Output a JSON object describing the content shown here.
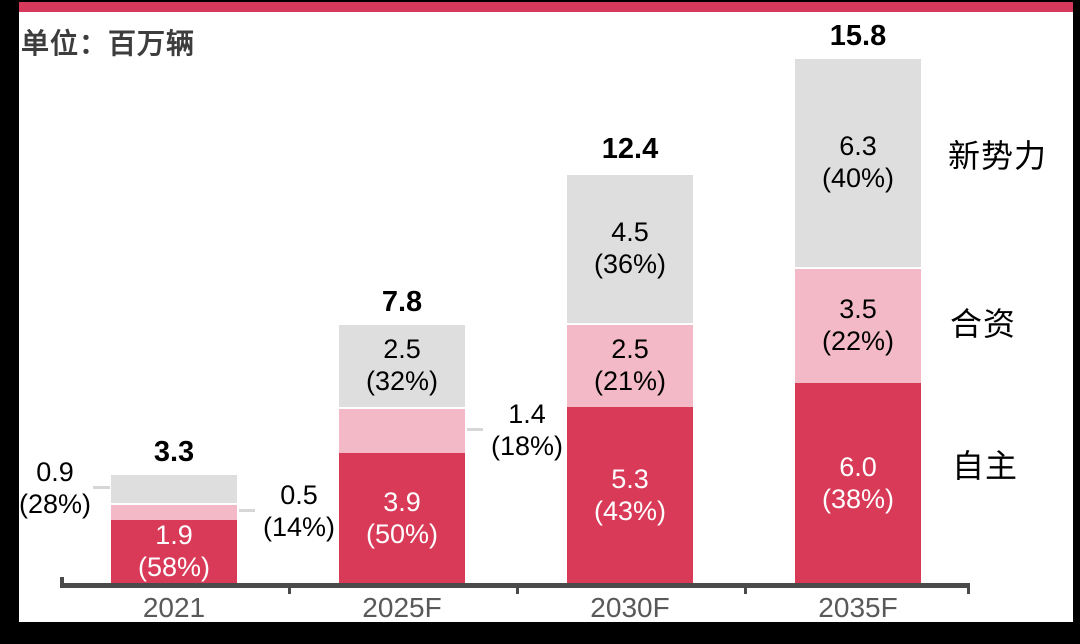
{
  "title": "单位：百万辆",
  "legend": {
    "new_forces": "新势力",
    "joint_venture": "合资",
    "domestic": "自主"
  },
  "colors": {
    "accent_line": "#d6395c",
    "domestic": "#d83a58",
    "joint_venture": "#f3b9c6",
    "new_forces": "#dedede",
    "axis_line": "#4a4a4a",
    "axis_label": "#595959",
    "leader_line": "#d6d6d6",
    "frame": "#000000",
    "background": "#ffffff",
    "inside_label_on_dark": "#ffffff",
    "inside_label_on_light": "#000000"
  },
  "chart_data": {
    "type": "bar",
    "stacked": true,
    "title": "单位：百万辆",
    "unit": "百万辆",
    "categories": [
      "2021",
      "2025F",
      "2030F",
      "2035F"
    ],
    "totals": [
      3.3,
      7.8,
      12.4,
      15.8
    ],
    "series": [
      {
        "name": "自主",
        "key": "domestic",
        "values": [
          1.9,
          3.9,
          5.3,
          6.0
        ],
        "pct": [
          "58%",
          "50%",
          "43%",
          "38%"
        ],
        "label_placement": [
          "inside",
          "inside",
          "inside",
          "inside"
        ],
        "label_color": "#ffffff"
      },
      {
        "name": "合资",
        "key": "joint_venture",
        "values": [
          0.5,
          1.4,
          2.5,
          3.5
        ],
        "pct": [
          "14%",
          "18%",
          "21%",
          "22%"
        ],
        "label_placement": [
          "right",
          "right",
          "inside",
          "inside"
        ],
        "label_color": "#000000"
      },
      {
        "name": "新势力",
        "key": "new_forces",
        "values": [
          0.9,
          2.5,
          4.5,
          6.3
        ],
        "pct": [
          "28%",
          "32%",
          "36%",
          "40%"
        ],
        "label_placement": [
          "left",
          "inside",
          "inside",
          "inside"
        ],
        "label_color": "#000000"
      }
    ],
    "ylim": [
      0,
      16
    ],
    "grid": false,
    "legend_position": "right"
  }
}
